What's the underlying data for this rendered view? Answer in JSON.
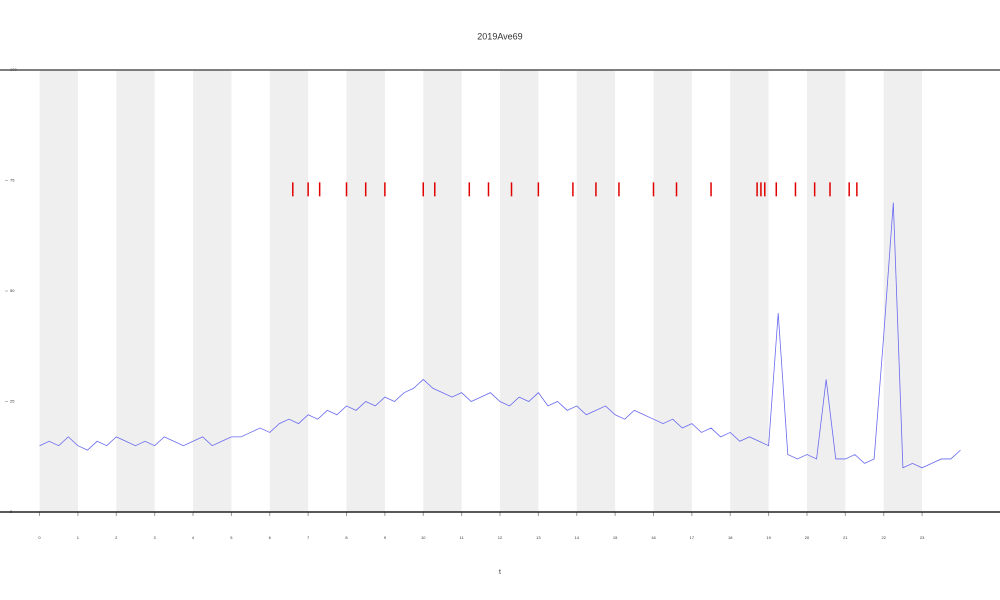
{
  "chart_data": {
    "type": "line",
    "title": "2019Ave69",
    "x_label": "t",
    "xlim": [
      -0.9,
      24.9
    ],
    "ylim": [
      0,
      100
    ],
    "xticks": [
      0,
      1,
      2,
      3,
      4,
      5,
      6,
      7,
      8,
      9,
      10,
      11,
      12,
      13,
      14,
      15,
      16,
      17,
      18,
      19,
      20,
      21,
      22,
      23
    ],
    "yticks": [
      0,
      25,
      50,
      75,
      100
    ],
    "shading": "alternate",
    "series": [
      {
        "color": "#6a6af0",
        "mark": "line",
        "x": [
          0,
          0.25,
          0.5,
          0.75,
          1,
          1.25,
          1.5,
          1.75,
          2,
          2.25,
          2.5,
          2.75,
          3,
          3.25,
          3.5,
          3.75,
          4,
          4.25,
          4.5,
          4.75,
          5,
          5.25,
          5.5,
          5.75,
          6,
          6.25,
          6.5,
          6.75,
          7,
          7.25,
          7.5,
          7.75,
          8,
          8.25,
          8.5,
          8.75,
          9,
          9.25,
          9.5,
          9.75,
          10,
          10.25,
          10.5,
          10.75,
          11,
          11.25,
          11.5,
          11.75,
          12,
          12.25,
          12.5,
          12.75,
          13,
          13.25,
          13.5,
          13.75,
          14,
          14.25,
          14.5,
          14.75,
          15,
          15.25,
          15.5,
          15.75,
          16,
          16.25,
          16.5,
          16.75,
          17,
          17.25,
          17.5,
          17.75,
          18,
          18.25,
          18.5,
          18.75,
          19,
          19.25,
          19.5,
          19.75,
          20,
          20.25,
          20.5,
          20.75,
          21,
          21.25,
          21.5,
          21.75,
          22,
          22.25,
          22.5,
          22.75,
          23,
          23.25,
          23.5,
          23.75,
          24
        ],
        "values": [
          15,
          16,
          15,
          17,
          15,
          14,
          16,
          15,
          17,
          16,
          15,
          16,
          15,
          17,
          16,
          15,
          16,
          17,
          15,
          16,
          17,
          17,
          18,
          19,
          18,
          20,
          21,
          20,
          22,
          21,
          23,
          22,
          24,
          23,
          25,
          24,
          26,
          25,
          27,
          28,
          30,
          28,
          27,
          26,
          27,
          25,
          26,
          27,
          25,
          24,
          26,
          25,
          27,
          24,
          25,
          23,
          24,
          22,
          23,
          24,
          22,
          21,
          23,
          22,
          21,
          20,
          21,
          19,
          20,
          18,
          19,
          17,
          18,
          16,
          17,
          16,
          15,
          45,
          13,
          12,
          13,
          12,
          30,
          12,
          12,
          13,
          11,
          12,
          40,
          70,
          10,
          11,
          10,
          11,
          12,
          12,
          14
        ]
      },
      {
        "color": "#e00000",
        "mark": "tick",
        "x": [
          6.6,
          7,
          7.3,
          8,
          8.5,
          9,
          10,
          10.3,
          11.2,
          11.7,
          12.3,
          13,
          13.9,
          14.5,
          15.1,
          16,
          16.6,
          17.5,
          18.7,
          18.8,
          18.9,
          19.2,
          19.7,
          20.2,
          20.6,
          21.1,
          21.3
        ],
        "values": [
          73,
          73,
          73,
          73,
          73,
          73,
          73,
          73,
          73,
          73,
          73,
          73,
          73,
          73,
          73,
          73,
          73,
          73,
          73,
          73,
          73,
          73,
          73,
          73,
          73,
          73,
          73
        ]
      }
    ]
  }
}
